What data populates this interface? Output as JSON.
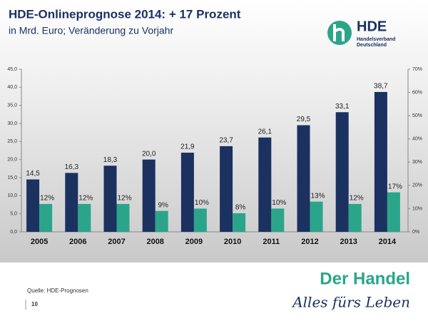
{
  "chart_data": {
    "type": "grouped-bar",
    "title": "HDE-Onlineprognose 2014: + 17 Prozent",
    "subtitle": "in Mrd. Euro; Veränderung zu Vorjahr",
    "categories": [
      "2005",
      "2006",
      "2007",
      "2008",
      "2009",
      "2010",
      "2011",
      "2012",
      "2013",
      "2014"
    ],
    "series": [
      {
        "color": "#1b3160",
        "values": [
          14.5,
          16.3,
          18.3,
          20.0,
          21.9,
          23.7,
          26.1,
          29.5,
          33.1,
          38.7
        ],
        "value_labels": [
          "14,5",
          "16,3",
          "18,3",
          "20,0",
          "21,9",
          "23,7",
          "26,1",
          "29,5",
          "33,1",
          "38,7"
        ]
      },
      {
        "color": "#2ba58a",
        "axis": "y2",
        "values": [
          12,
          12,
          12,
          9,
          10,
          8,
          10,
          13,
          12,
          17
        ],
        "value_labels": [
          "12%",
          "12%",
          "12%",
          "9%",
          "10%",
          "8%",
          "10%",
          "13%",
          "12%",
          "17%"
        ]
      }
    ],
    "ylim": [
      0,
      45
    ],
    "yticks": [
      {
        "value": 0,
        "label": "0,0"
      },
      {
        "value": 5,
        "label": "5,0"
      },
      {
        "value": 10,
        "label": "10,0"
      },
      {
        "value": 15,
        "label": "15,0"
      },
      {
        "value": 20,
        "label": "20,0"
      },
      {
        "value": 25,
        "label": "25,0"
      },
      {
        "value": 30,
        "label": "30,0"
      },
      {
        "value": 35,
        "label": "35,0"
      },
      {
        "value": 40,
        "label": "40,0"
      },
      {
        "value": 45,
        "label": "45,0"
      }
    ],
    "y2lim": [
      0,
      70
    ],
    "y2ticks": [
      {
        "value": 0,
        "label": "0%"
      },
      {
        "value": 10,
        "label": "10%"
      },
      {
        "value": 20,
        "label": "20%"
      },
      {
        "value": 30,
        "label": "30%"
      },
      {
        "value": 40,
        "label": "40%"
      },
      {
        "value": 50,
        "label": "50%"
      },
      {
        "value": 60,
        "label": "60%"
      },
      {
        "value": 70,
        "label": "70%"
      }
    ],
    "grid": false
  },
  "logo": {
    "name": "HDE",
    "line1": "Handelsverband",
    "line2": "Deutschland"
  },
  "footer": {
    "source": "Quelle: HDE-Prognosen",
    "page": "10",
    "brand": "Der Handel",
    "slogan": "Alles fürs Leben"
  }
}
